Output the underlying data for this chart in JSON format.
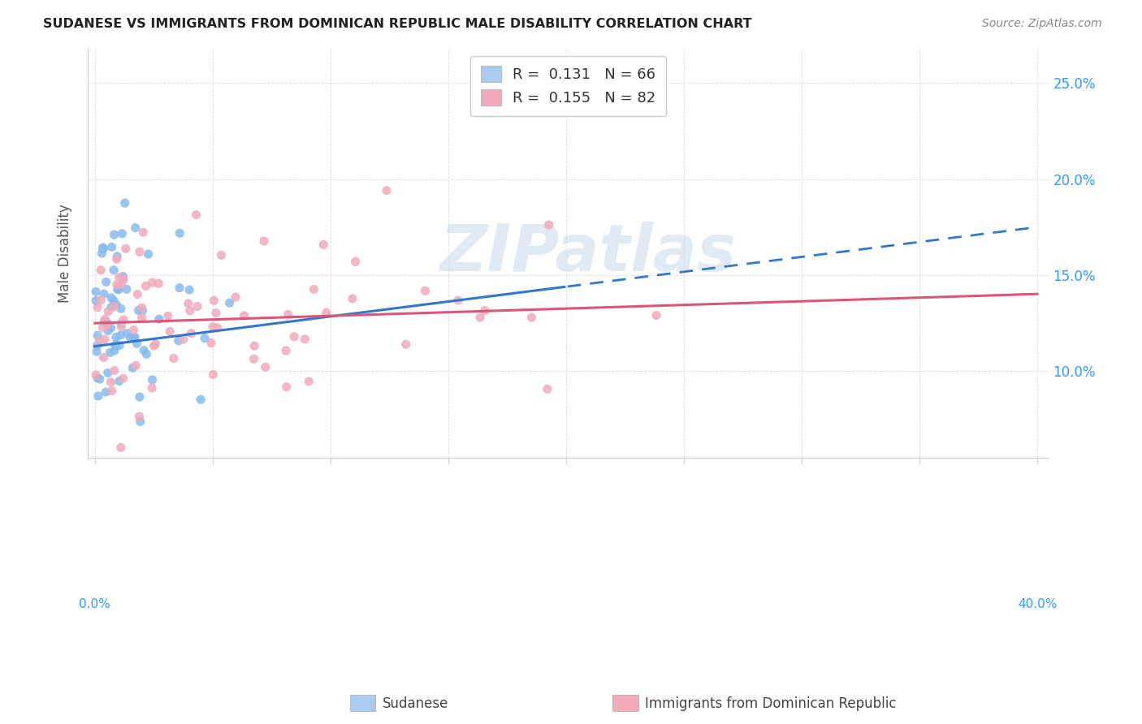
{
  "title": "SUDANESE VS IMMIGRANTS FROM DOMINICAN REPUBLIC MALE DISABILITY CORRELATION CHART",
  "source": "Source: ZipAtlas.com",
  "ylabel": "Male Disability",
  "xlim": [
    -0.003,
    0.405
  ],
  "ylim": [
    0.055,
    0.268
  ],
  "yticks": [
    0.1,
    0.15,
    0.2,
    0.25
  ],
  "ytick_labels": [
    "10.0%",
    "15.0%",
    "20.0%",
    "25.0%"
  ],
  "xtick_vals": [
    0.0,
    0.05,
    0.1,
    0.15,
    0.2,
    0.25,
    0.3,
    0.35,
    0.4
  ],
  "legend1_r": "0.131",
  "legend1_n": "66",
  "legend2_r": "0.155",
  "legend2_n": "82",
  "legend1_patch_color": "#aaccf0",
  "legend2_patch_color": "#f4aabb",
  "line1_color": "#3377cc",
  "line2_color": "#dd5577",
  "scatter1_color": "#88bbee",
  "scatter2_color": "#f0aabb",
  "grid_color": "#dddddd",
  "watermark": "ZIPatlas",
  "watermark_color": "#ccddee",
  "bg_color": "#ffffff",
  "title_color": "#222222",
  "source_color": "#888888",
  "ylabel_color": "#555555",
  "tick_label_color": "#3399ff",
  "bottom_label1": "Sudanese",
  "bottom_label2": "Immigrants from Dominican Republic"
}
